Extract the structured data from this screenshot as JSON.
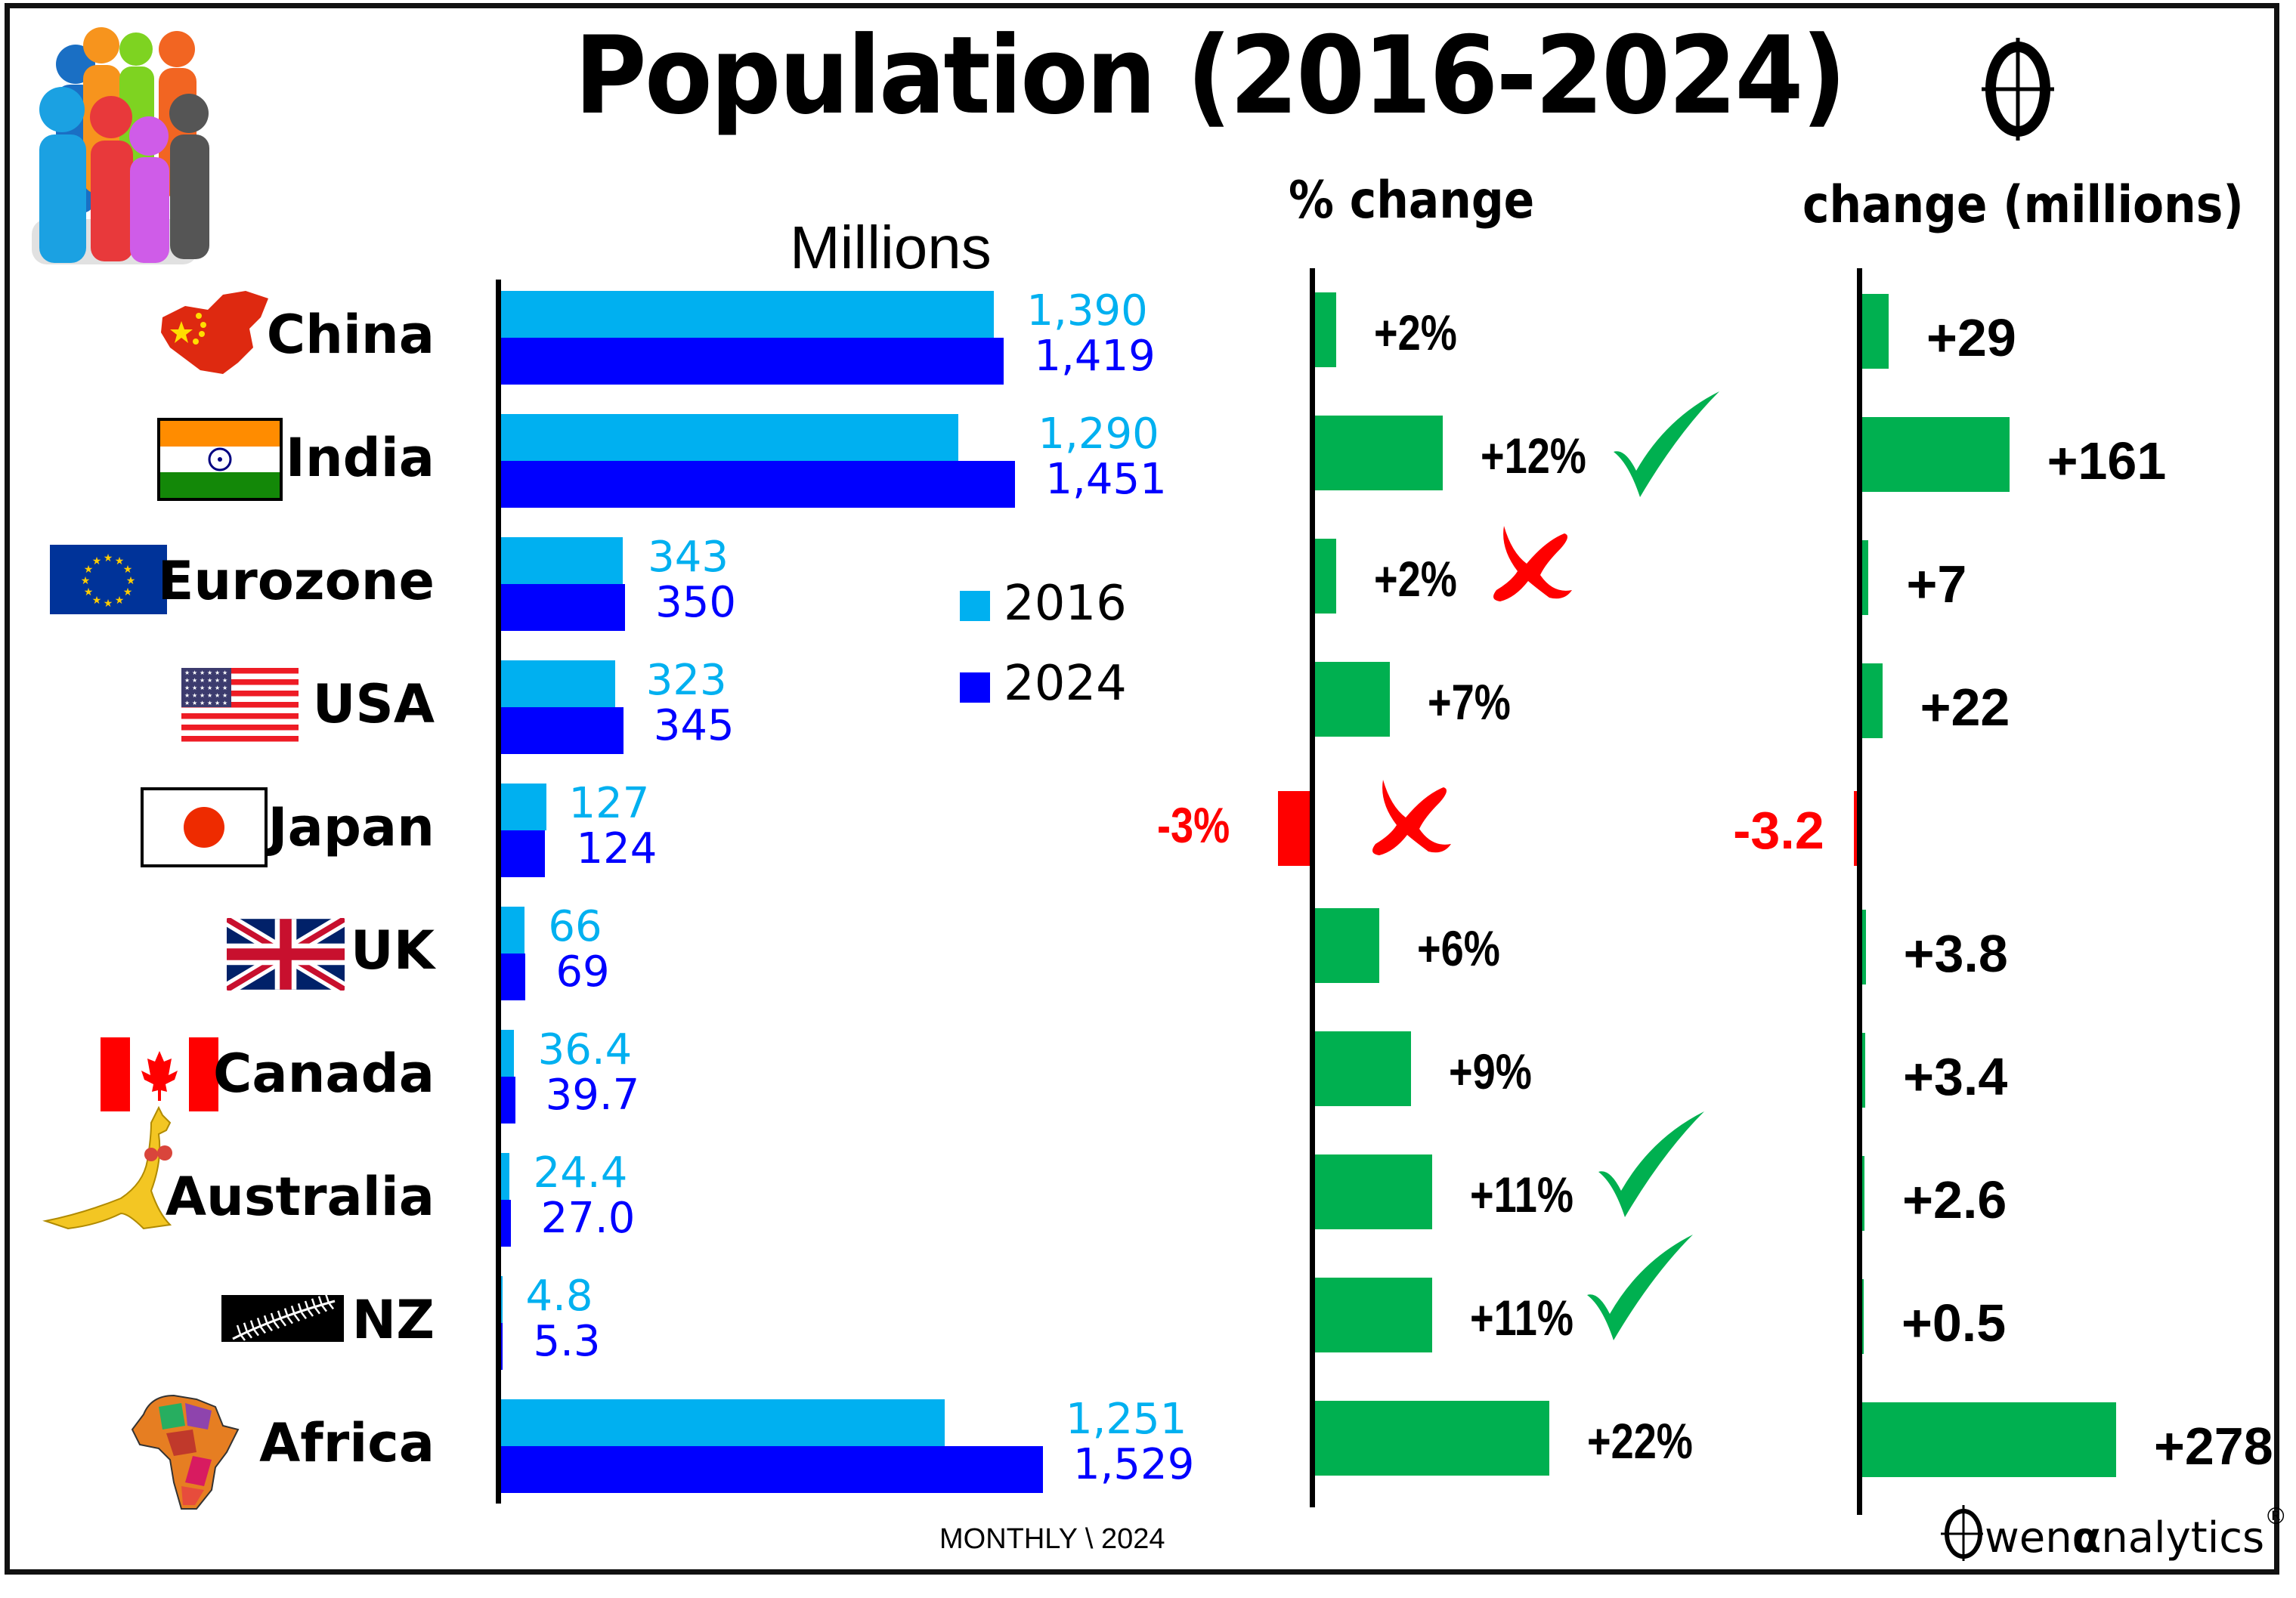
{
  "title": "Population (2016-2024)",
  "headers": {
    "millions": "Millions",
    "pct_change": "% change",
    "abs_change": "change (millions)"
  },
  "legend": [
    {
      "label": "2016",
      "color": "#00B0F0"
    },
    {
      "label": "2024",
      "color": "#0000FF"
    }
  ],
  "footer": {
    "source": "MONTHLY \\ 2024",
    "brand_pre": "wen ",
    "brand_alpha": "α",
    "brand_post": "nalytics",
    "brand_mark": "®"
  },
  "colors": {
    "y2016": "#00B0F0",
    "y2024": "#0000FF",
    "positive": "#00B050",
    "negative": "#FF0000",
    "text": "#000000"
  },
  "chart_data": [
    {
      "type": "bar",
      "orientation": "horizontal",
      "title": "Millions",
      "categories": [
        "China",
        "India",
        "Eurozone",
        "USA",
        "Japan",
        "UK",
        "Canada",
        "Australia",
        "NZ",
        "Africa"
      ],
      "series": [
        {
          "name": "2016",
          "values": [
            1390,
            1290,
            343,
            323,
            127,
            66,
            36.4,
            24.4,
            4.8,
            1251
          ],
          "labels": [
            "1,390",
            "1,290",
            "343",
            "323",
            "127",
            "66",
            "36.4",
            "24.4",
            "4.8",
            "1,251"
          ]
        },
        {
          "name": "2024",
          "values": [
            1419,
            1451,
            350,
            345,
            124,
            69,
            39.7,
            27.0,
            5.3,
            1529
          ],
          "labels": [
            "1,419",
            "1,451",
            "350",
            "345",
            "124",
            "69",
            "39.7",
            "27.0",
            "5.3",
            "1,529"
          ]
        }
      ],
      "xlim": [
        0,
        1529
      ],
      "grid": false,
      "legend_position": "center-right"
    },
    {
      "type": "bar",
      "orientation": "horizontal",
      "title": "% change",
      "categories": [
        "China",
        "India",
        "Eurozone",
        "USA",
        "Japan",
        "UK",
        "Canada",
        "Australia",
        "NZ",
        "Africa"
      ],
      "values": [
        2,
        12,
        2,
        7,
        -3,
        6,
        9,
        11,
        11,
        22
      ],
      "labels": [
        "+2%",
        "+12%",
        "+2%",
        "+7%",
        "-3%",
        "+6%",
        "+9%",
        "+11%",
        "+11%",
        "+22%"
      ],
      "annotations": [
        "",
        "check",
        "cross",
        "",
        "cross",
        "",
        "",
        "check",
        "check",
        ""
      ],
      "xlim": [
        -3,
        22
      ]
    },
    {
      "type": "bar",
      "orientation": "horizontal",
      "title": "change (millions)",
      "categories": [
        "China",
        "India",
        "Eurozone",
        "USA",
        "Japan",
        "UK",
        "Canada",
        "Australia",
        "NZ",
        "Africa"
      ],
      "values": [
        29,
        161,
        7,
        22,
        -3.2,
        3.8,
        3.4,
        2.6,
        0.5,
        278
      ],
      "labels": [
        "+29",
        "+161",
        "+7",
        "+22",
        "-3.2",
        "+3.8",
        "+3.4",
        "+2.6",
        "+0.5",
        "+278"
      ],
      "xlim": [
        -3.2,
        278
      ]
    }
  ],
  "countries": [
    {
      "name": "China",
      "icon": "china-map-icon"
    },
    {
      "name": "India",
      "icon": "india-flag-icon"
    },
    {
      "name": "Eurozone",
      "icon": "eu-flag-icon"
    },
    {
      "name": "USA",
      "icon": "usa-flag-icon"
    },
    {
      "name": "Japan",
      "icon": "japan-flag-icon"
    },
    {
      "name": "UK",
      "icon": "uk-flag-icon"
    },
    {
      "name": "Canada",
      "icon": "canada-flag-icon"
    },
    {
      "name": "Australia",
      "icon": "kangaroo-icon"
    },
    {
      "name": "NZ",
      "icon": "silver-fern-icon"
    },
    {
      "name": "Africa",
      "icon": "africa-map-icon"
    }
  ]
}
